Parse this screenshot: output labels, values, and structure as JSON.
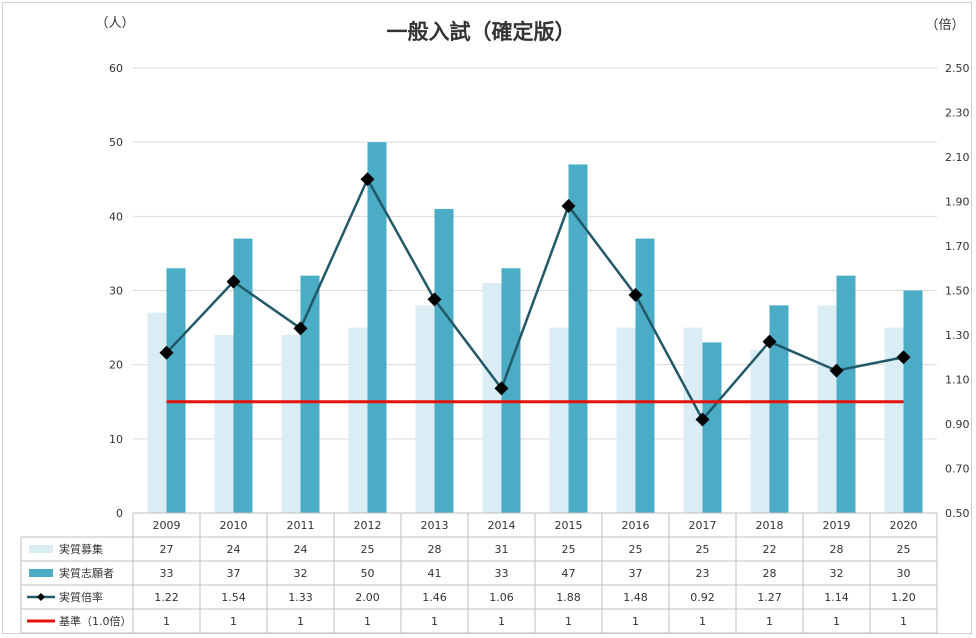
{
  "chart_data": {
    "type": "bar",
    "title": "一般入試（確定版）",
    "y_left_unit": "（人）",
    "y_right_unit": "（倍）",
    "categories": [
      "2009",
      "2010",
      "2011",
      "2012",
      "2013",
      "2014",
      "2015",
      "2016",
      "2017",
      "2018",
      "2019",
      "2020"
    ],
    "y_left_lim": [
      0,
      60
    ],
    "y_left_ticks": [
      "0",
      "10",
      "20",
      "30",
      "40",
      "50",
      "60"
    ],
    "y_right_lim": [
      0.5,
      2.5
    ],
    "y_right_ticks": [
      "0.50",
      "0.70",
      "0.90",
      "1.10",
      "1.30",
      "1.50",
      "1.70",
      "1.90",
      "2.10",
      "2.30",
      "2.50"
    ],
    "grid": true,
    "legend": "data-table",
    "series": [
      {
        "name": "実質募集",
        "kind": "bar",
        "axis": "left",
        "color": "#daedf4",
        "values": [
          27,
          24,
          24,
          25,
          28,
          31,
          25,
          25,
          25,
          22,
          28,
          25
        ],
        "labels": [
          "27",
          "24",
          "24",
          "25",
          "28",
          "31",
          "25",
          "25",
          "25",
          "22",
          "28",
          "25"
        ]
      },
      {
        "name": "実質志願者",
        "kind": "bar",
        "axis": "left",
        "color": "#4bacc6",
        "values": [
          33,
          37,
          32,
          50,
          41,
          33,
          47,
          37,
          23,
          28,
          32,
          30
        ],
        "labels": [
          "33",
          "37",
          "32",
          "50",
          "41",
          "33",
          "47",
          "37",
          "23",
          "28",
          "32",
          "30"
        ]
      },
      {
        "name": "実質倍率",
        "kind": "line",
        "axis": "right",
        "color": "#215968",
        "marker": "diamond",
        "values": [
          1.22,
          1.54,
          1.33,
          2.0,
          1.46,
          1.06,
          1.88,
          1.48,
          0.92,
          1.27,
          1.14,
          1.2
        ],
        "labels": [
          "1.22",
          "1.54",
          "1.33",
          "2.00",
          "1.46",
          "1.06",
          "1.88",
          "1.48",
          "0.92",
          "1.27",
          "1.14",
          "1.20"
        ]
      },
      {
        "name": "基準（1.0倍）",
        "kind": "line",
        "axis": "right",
        "color": "#e3120b",
        "values": [
          1,
          1,
          1,
          1,
          1,
          1,
          1,
          1,
          1,
          1,
          1,
          1
        ],
        "labels": [
          "1",
          "1",
          "1",
          "1",
          "1",
          "1",
          "1",
          "1",
          "1",
          "1",
          "1",
          "1"
        ]
      }
    ]
  }
}
